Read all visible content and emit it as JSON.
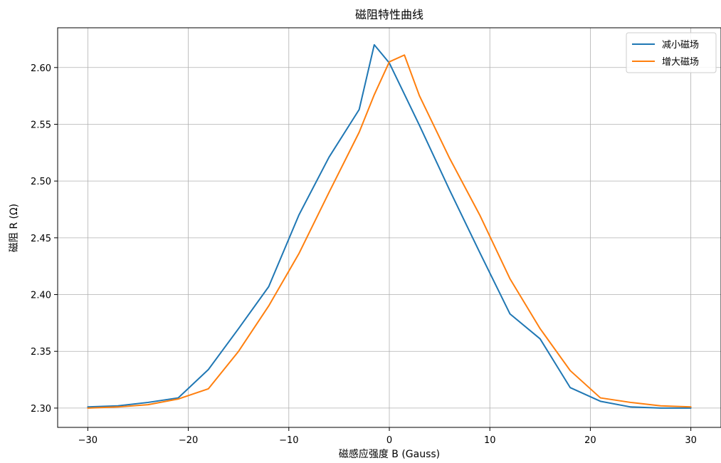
{
  "chart_data": {
    "type": "line",
    "title": "磁阻特性曲线",
    "xlabel": "磁感应强度 B (Gauss)",
    "ylabel": "磁阻 R (Ω)",
    "xlim": [
      -33,
      33
    ],
    "ylim": [
      2.283,
      2.635
    ],
    "xticks": [
      -30,
      -20,
      -10,
      0,
      10,
      20,
      30
    ],
    "yticks": [
      2.3,
      2.35,
      2.4,
      2.45,
      2.5,
      2.55,
      2.6
    ],
    "grid": true,
    "legend_position": "top-right",
    "series": [
      {
        "name": "减小磁场",
        "color": "#1f77b4",
        "x": [
          -30,
          -27,
          -24,
          -21,
          -18,
          -15,
          -12,
          -9,
          -6,
          -3,
          -1.5,
          0,
          3,
          6,
          9,
          12,
          15,
          18,
          21,
          24,
          27,
          30
        ],
        "y": [
          2.301,
          2.302,
          2.305,
          2.309,
          2.334,
          2.37,
          2.407,
          2.47,
          2.521,
          2.563,
          2.62,
          2.604,
          2.549,
          2.492,
          2.437,
          2.383,
          2.361,
          2.318,
          2.306,
          2.301,
          2.3,
          2.3
        ]
      },
      {
        "name": "增大磁场",
        "color": "#ff7f0e",
        "x": [
          -30,
          -27,
          -24,
          -21,
          -18,
          -15,
          -12,
          -9,
          -6,
          -3,
          -1.5,
          0,
          1.5,
          3,
          6,
          9,
          12,
          15,
          18,
          21,
          24,
          27,
          30
        ],
        "y": [
          2.3,
          2.301,
          2.303,
          2.308,
          2.317,
          2.35,
          2.39,
          2.436,
          2.49,
          2.543,
          2.576,
          2.605,
          2.611,
          2.575,
          2.52,
          2.47,
          2.414,
          2.37,
          2.333,
          2.309,
          2.305,
          2.302,
          2.301
        ]
      }
    ]
  }
}
